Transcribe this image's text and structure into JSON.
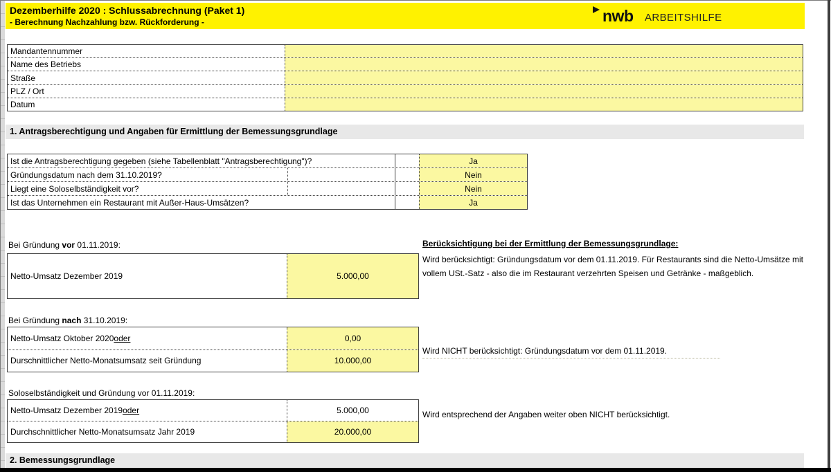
{
  "header": {
    "title_line1": "Dezemberhilfe 2020 : Schlussabrechnung (Paket 1)",
    "title_line2": "- Berechnung Nachzahlung bzw. Rückforderung -",
    "logo": {
      "brand": "nwb",
      "suffix": "ARBEITSHILFE"
    }
  },
  "client_form": {
    "rows": [
      {
        "label": "Mandantennummer",
        "value": ""
      },
      {
        "label": "Name des Betriebs",
        "value": ""
      },
      {
        "label": "Straße",
        "value": ""
      },
      {
        "label": "PLZ / Ort",
        "value": ""
      },
      {
        "label": "Datum",
        "value": ""
      }
    ]
  },
  "section1": {
    "title": "1. Antragsberechtigung und Angaben für Ermittlung der Bemessungsgrundlage",
    "questions": [
      {
        "label": "Ist die Antragsberechtigung gegeben (siehe Tabellenblatt \"Antragsberechtigung\")?",
        "answer": "Ja"
      },
      {
        "label": "Gründungsdatum nach dem 31.10.2019?",
        "answer": "Nein"
      },
      {
        "label": "Liegt eine Soloselbständigkeit vor?",
        "answer": "Nein"
      },
      {
        "label": "Ist das Unternehmen ein Restaurant mit Außer-Haus-Umsätzen?",
        "answer": "Ja"
      }
    ],
    "founded_before": {
      "heading_prefix": "Bei Gründung ",
      "heading_bold": "vor",
      "heading_suffix": " 01.11.2019:",
      "row1_label": "Netto-Umsatz Dezember 2019",
      "row1_value": "5.000,00"
    },
    "founded_after": {
      "heading_prefix": "Bei Gründung ",
      "heading_bold": "nach",
      "heading_suffix": " 31.10.2019:",
      "row1_label": "Netto-Umsatz Oktober 2020 ",
      "row1_label_underlined": "oder",
      "row1_value": "0,00",
      "row2_label": "Durschnittlicher Netto-Monatsumsatz seit Gründung",
      "row2_value": "10.000,00"
    },
    "solo": {
      "heading": "Soloselbständigkeit und Gründung vor 01.11.2019:",
      "row1_label": "Netto-Umsatz Dezember 2019 ",
      "row1_label_underlined": "oder",
      "row1_value": "5.000,00",
      "row2_label": "Durchschnittlicher Netto-Monatsumsatz Jahr 2019",
      "row2_value": "20.000,00"
    },
    "notes": {
      "heading": "Berücksichtigung bei der Ermittlung der Bemessungsgrundlage:",
      "note1": "Wird berücksichtigt: Gründungsdatum vor dem 01.11.2019. Für Restaurants sind die Netto-Umsätze mit vollem USt.-Satz - also die im Restaurant verzehrten Speisen und Getränke - maßgeblich.",
      "note2": "Wird NICHT berücksichtigt: Gründungsdatum vor dem 01.11.2019.",
      "note3": "Wird entsprechend der Angaben weiter oben NICHT berücksichtigt."
    }
  },
  "section2": {
    "title": "2. Bemessungsgrundlage"
  },
  "colors": {
    "band_yellow": "#FFF200",
    "input_cell_yellow": "#FBF8A1",
    "section_band_gray": "#E8E8E8",
    "border_dark": "#404040"
  }
}
